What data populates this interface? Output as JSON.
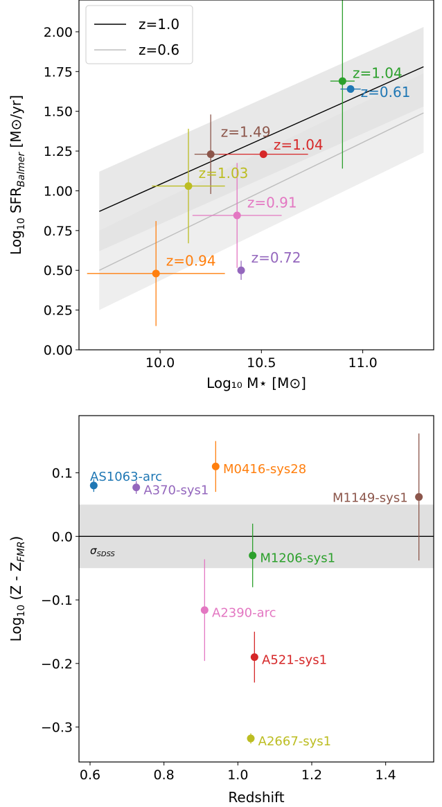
{
  "chart_data": [
    {
      "type": "scatter",
      "title": "",
      "xlabel": "Log₁₀ M⋆ [M⊙]",
      "ylabel": {
        "prefix": "Log",
        "sub1": "10",
        "mid": " SFR",
        "sub2": "Balmer",
        "suffix": " [M⊙/yr]"
      },
      "xlim": [
        9.6,
        11.35
      ],
      "ylim": [
        0.0,
        2.2
      ],
      "xticks": [
        10.0,
        10.5,
        11.0
      ],
      "xtick_labels": [
        "10.0",
        "10.5",
        "11.0"
      ],
      "yticks": [
        0.0,
        0.25,
        0.5,
        0.75,
        1.0,
        1.25,
        1.5,
        1.75,
        2.0
      ],
      "ytick_labels": [
        "0.00",
        "0.25",
        "0.50",
        "0.75",
        "1.00",
        "1.25",
        "1.50",
        "1.75",
        "2.00"
      ],
      "grid": false,
      "legend_position": "top-left",
      "relations": [
        {
          "name": "z=1.0",
          "color": "#000000",
          "x": [
            9.7,
            11.3
          ],
          "y": [
            0.87,
            1.78
          ],
          "band": [
            [
              1.12,
              2.03
            ],
            [
              0.62,
              1.53
            ]
          ],
          "band_color": "#e0e0e0"
        },
        {
          "name": "z=0.6",
          "color": "#bdbdbd",
          "x": [
            9.7,
            11.3
          ],
          "y": [
            0.5,
            1.49
          ],
          "band": [
            [
              0.75,
              1.74
            ],
            [
              0.25,
              1.24
            ]
          ],
          "band_color": "#eeeeee"
        }
      ],
      "points": [
        {
          "label": "z=1.04",
          "color": "#2ca02c",
          "x": 10.9,
          "y": 1.69,
          "xerr": [
            0.06,
            0.06
          ],
          "yerr": [
            0.55,
            0.53
          ],
          "label_dx": 0.05,
          "label_dy": 0.02
        },
        {
          "label": "z=0.61",
          "color": "#1f77b4",
          "x": 10.94,
          "y": 1.64,
          "xerr": [
            0.05,
            0.05
          ],
          "yerr": [
            0.02,
            0.02
          ],
          "label_dx": 0.05,
          "label_dy": -0.05
        },
        {
          "label": "z=1.49",
          "color": "#8c564b",
          "x": 10.25,
          "y": 1.23,
          "xerr": [
            0.08,
            0.08
          ],
          "yerr": [
            0.25,
            0.25
          ],
          "label_dx": 0.05,
          "label_dy": 0.11
        },
        {
          "label": "z=1.04",
          "color": "#d62728",
          "x": 10.51,
          "y": 1.23,
          "xerr": [
            0.22,
            0.22
          ],
          "yerr": [
            0.0,
            0.0
          ],
          "label_dx": 0.05,
          "label_dy": 0.03
        },
        {
          "label": "z=1.03",
          "color": "#bcbd22",
          "x": 10.14,
          "y": 1.03,
          "xerr": [
            0.18,
            0.18
          ],
          "yerr": [
            0.36,
            0.36
          ],
          "label_dx": 0.05,
          "label_dy": 0.05
        },
        {
          "label": "z=0.91",
          "color": "#e377c2",
          "x": 10.38,
          "y": 0.845,
          "xerr": [
            0.22,
            0.22
          ],
          "yerr": [
            0.33,
            0.33
          ],
          "label_dx": 0.05,
          "label_dy": 0.05
        },
        {
          "label": "z=0.72",
          "color": "#9467bd",
          "x": 10.4,
          "y": 0.5,
          "xerr": [
            0.0,
            0.0
          ],
          "yerr": [
            0.06,
            0.06
          ],
          "label_dx": 0.05,
          "label_dy": 0.05
        },
        {
          "label": "z=0.94",
          "color": "#ff7f0e",
          "x": 9.98,
          "y": 0.48,
          "xerr": [
            0.34,
            0.34
          ],
          "yerr": [
            0.33,
            0.33
          ],
          "label_dx": 0.05,
          "label_dy": 0.05
        }
      ]
    },
    {
      "type": "scatter",
      "title": "",
      "xlabel": "Redshift",
      "ylabel": {
        "prefix": "Log",
        "sub1": "10",
        "mid": " (Z - Z",
        "sub2": "FMR",
        "suffix": ")"
      },
      "xlim": [
        0.57,
        1.53
      ],
      "ylim": [
        -0.355,
        0.19
      ],
      "xticks": [
        0.6,
        0.8,
        1.0,
        1.2,
        1.4
      ],
      "xtick_labels": [
        "0.6",
        "0.8",
        "1.0",
        "1.2",
        "1.4"
      ],
      "yticks": [
        -0.3,
        -0.2,
        -0.1,
        0.0,
        0.1
      ],
      "ytick_labels": [
        "−0.3",
        "−0.2",
        "−0.1",
        "0.0",
        "0.1"
      ],
      "grid": false,
      "reference_line": 0.0,
      "scatter_band": [
        -0.05,
        0.05
      ],
      "scatter_band_label": {
        "sigma": "σ",
        "sub": "SDSS"
      },
      "points": [
        {
          "label": "AS1063-arc",
          "color": "#1f77b4",
          "x": 0.61,
          "y": 0.08,
          "yerr": [
            0.01,
            0.01
          ],
          "anchor": "start",
          "label_dx": -0.01,
          "label_dy": 0.015
        },
        {
          "label": "A370-sys1",
          "color": "#9467bd",
          "x": 0.725,
          "y": 0.077,
          "yerr": [
            0.01,
            0.01
          ],
          "anchor": "start",
          "label_dx": 0.02,
          "label_dy": -0.003
        },
        {
          "label": "M0416-sys28",
          "color": "#ff7f0e",
          "x": 0.94,
          "y": 0.11,
          "yerr": [
            0.04,
            0.04
          ],
          "anchor": "start",
          "label_dx": 0.02,
          "label_dy": -0.003
        },
        {
          "label": "M1149-sys1",
          "color": "#8c564b",
          "x": 1.49,
          "y": 0.062,
          "yerr": [
            0.1,
            0.1
          ],
          "anchor": "end",
          "label_dx": -0.03,
          "label_dy": 0.0
        },
        {
          "label": "M1206-sys1",
          "color": "#2ca02c",
          "x": 1.04,
          "y": -0.03,
          "yerr": [
            0.05,
            0.05
          ],
          "anchor": "start",
          "label_dx": 0.02,
          "label_dy": -0.003
        },
        {
          "label": "A2390-arc",
          "color": "#e377c2",
          "x": 0.91,
          "y": -0.116,
          "yerr": [
            0.08,
            0.08
          ],
          "anchor": "start",
          "label_dx": 0.02,
          "label_dy": -0.003
        },
        {
          "label": "A521-sys1",
          "color": "#d62728",
          "x": 1.045,
          "y": -0.19,
          "yerr": [
            0.04,
            0.04
          ],
          "anchor": "start",
          "label_dx": 0.02,
          "label_dy": -0.003
        },
        {
          "label": "A2667-sys1",
          "color": "#bcbd22",
          "x": 1.035,
          "y": -0.318,
          "yerr": [
            0.008,
            0.008
          ],
          "anchor": "start",
          "label_dx": 0.02,
          "label_dy": -0.003
        }
      ]
    }
  ]
}
